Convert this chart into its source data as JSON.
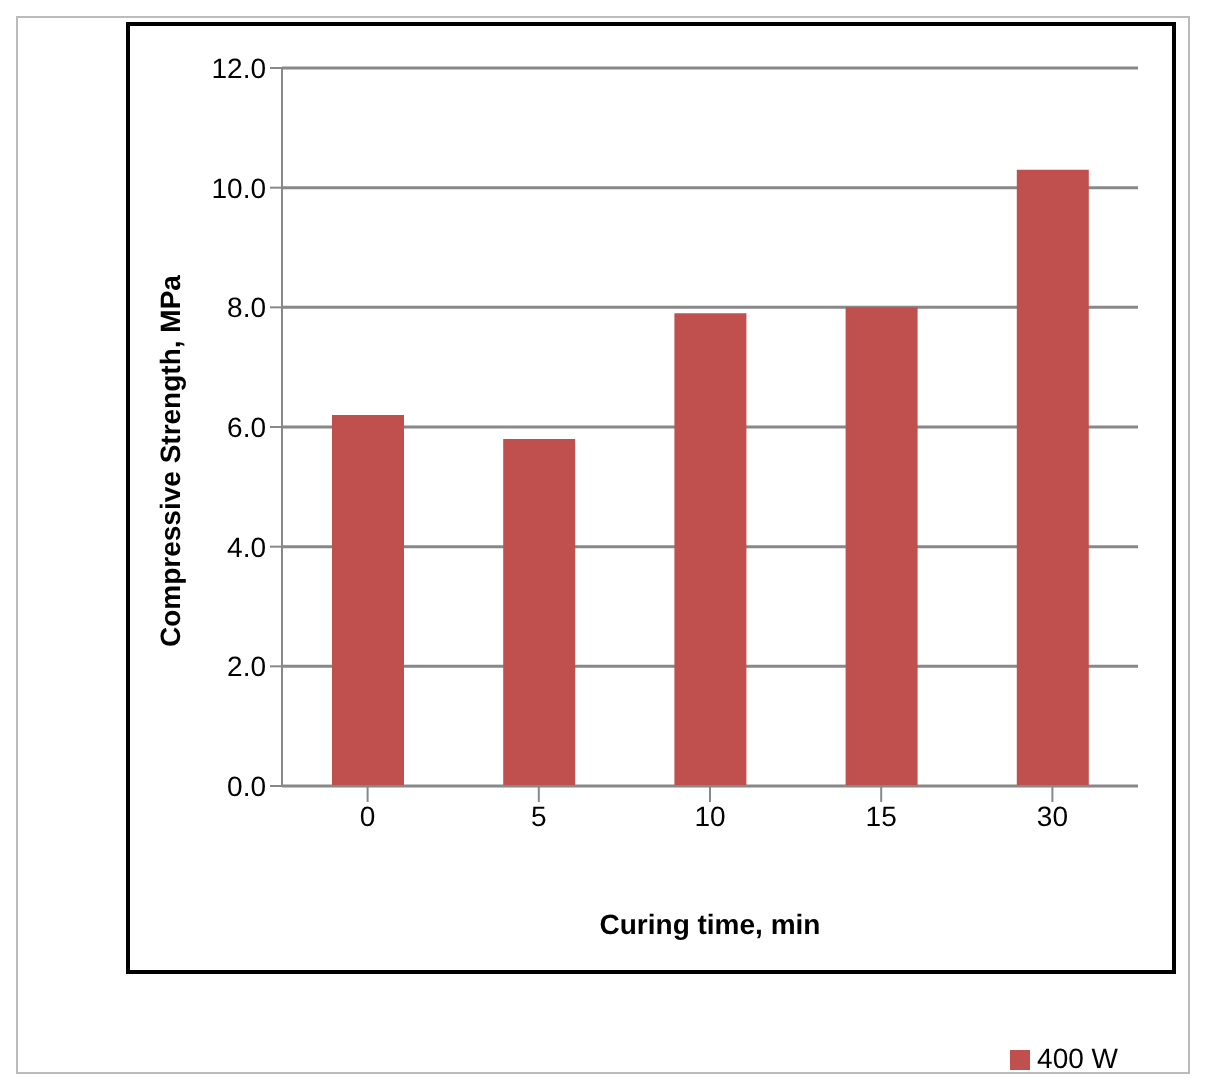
{
  "chart_data": {
    "type": "bar",
    "xlabel": "Curing time, min",
    "ylabel": "Compressive Strength, MPa",
    "categories": [
      "0",
      "5",
      "10",
      "15",
      "30"
    ],
    "series": [
      {
        "name": "400 W",
        "color": "#c0504d",
        "values": [
          6.2,
          5.8,
          7.9,
          8.0,
          10.3
        ]
      }
    ],
    "ylim": [
      0,
      12
    ],
    "yticks": [
      {
        "value": 0,
        "label": "0.0"
      },
      {
        "value": 2,
        "label": "2.0"
      },
      {
        "value": 4,
        "label": "4.0"
      },
      {
        "value": 6,
        "label": "6.0"
      },
      {
        "value": 8,
        "label": "8.0"
      },
      {
        "value": 10,
        "label": "10.0"
      },
      {
        "value": 12,
        "label": "12.0"
      }
    ],
    "grid": "y",
    "legend": "bottom right"
  }
}
